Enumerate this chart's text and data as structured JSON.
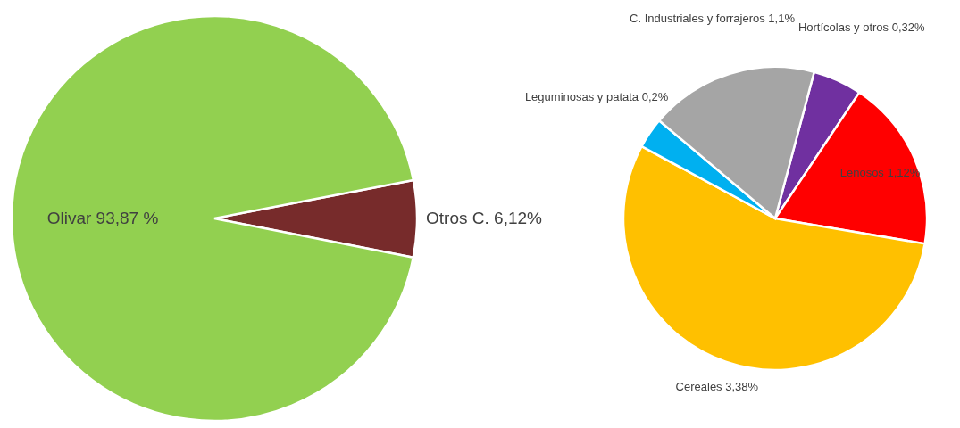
{
  "chart_data": [
    {
      "type": "pie",
      "categories": [
        "Otros C.",
        "Olivar"
      ],
      "values": [
        6.12,
        93.87
      ],
      "value_labels": [
        "6,12%",
        "93,87 %"
      ],
      "colors": [
        "#772b2b",
        "#92d050"
      ]
    },
    {
      "type": "pie",
      "categories": [
        "Hortícolas y otros",
        "Leñosos",
        "Cereales",
        "Leguminosas y patata",
        "C. Industriales y forrajeros"
      ],
      "values": [
        0.32,
        1.12,
        3.38,
        0.2,
        1.1
      ],
      "value_labels": [
        "0,32%",
        "1,12%",
        "3,38%",
        "0,2%",
        "1,1%"
      ],
      "colors": [
        "#7030a0",
        "#ff0000",
        "#ffc000",
        "#00b0f0",
        "#a5a5a5"
      ]
    }
  ]
}
